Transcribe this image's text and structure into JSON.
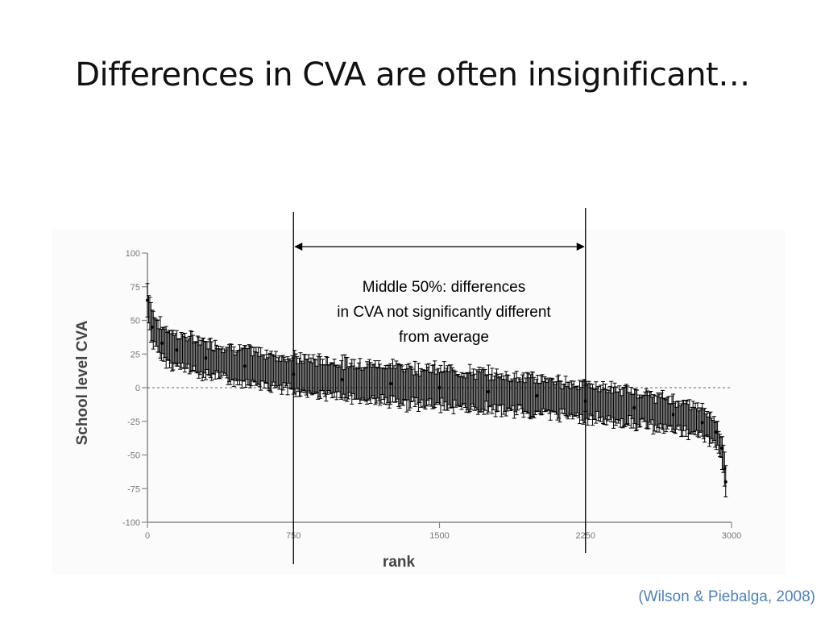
{
  "slide": {
    "title": "Differences in CVA are often insignificant…",
    "citation": "(Wilson & Piebalga, 2008)"
  },
  "chart_data": {
    "type": "scatter",
    "title": "",
    "xlabel": "rank",
    "ylabel": "School level CVA",
    "xlim": [
      0,
      3000
    ],
    "ylim": [
      -100,
      100
    ],
    "x_ticks": [
      0,
      750,
      1500,
      2250,
      3000
    ],
    "y_ticks": [
      100,
      75,
      50,
      25,
      0,
      -25,
      -50,
      -75,
      -100
    ],
    "x_tick_labels": [
      "0",
      "750",
      "1500",
      "2250",
      "3000"
    ],
    "y_tick_labels": [
      "100",
      "75",
      "50",
      "25",
      "0",
      "-25",
      "-50",
      "-75",
      "-100"
    ],
    "reference_line": {
      "y": 0,
      "style": "dashed"
    },
    "series": [
      {
        "error_bars": true,
        "color": "#000000",
        "points": [
          {
            "x": 0,
            "y": 65
          },
          {
            "x": 25,
            "y": 45
          },
          {
            "x": 75,
            "y": 33
          },
          {
            "x": 150,
            "y": 28
          },
          {
            "x": 300,
            "y": 22
          },
          {
            "x": 500,
            "y": 16
          },
          {
            "x": 750,
            "y": 10
          },
          {
            "x": 1000,
            "y": 6
          },
          {
            "x": 1250,
            "y": 3
          },
          {
            "x": 1500,
            "y": 0
          },
          {
            "x": 1750,
            "y": -3
          },
          {
            "x": 2000,
            "y": -6
          },
          {
            "x": 2250,
            "y": -10
          },
          {
            "x": 2500,
            "y": -15
          },
          {
            "x": 2700,
            "y": -20
          },
          {
            "x": 2850,
            "y": -26
          },
          {
            "x": 2920,
            "y": -33
          },
          {
            "x": 2950,
            "y": -45
          },
          {
            "x": 2965,
            "y": -60
          },
          {
            "x": 2970,
            "y": -70
          }
        ],
        "error_halfwidth": [
          {
            "x": 0,
            "e": 12
          },
          {
            "x": 500,
            "e": 12
          },
          {
            "x": 1500,
            "e": 14
          },
          {
            "x": 2500,
            "e": 12
          },
          {
            "x": 2970,
            "e": 10
          }
        ]
      }
    ],
    "middle_band": {
      "x_start": 750,
      "x_end": 2250,
      "label_lines": [
        "Middle 50%: differences",
        "in CVA not significantly different",
        "from average"
      ]
    }
  }
}
